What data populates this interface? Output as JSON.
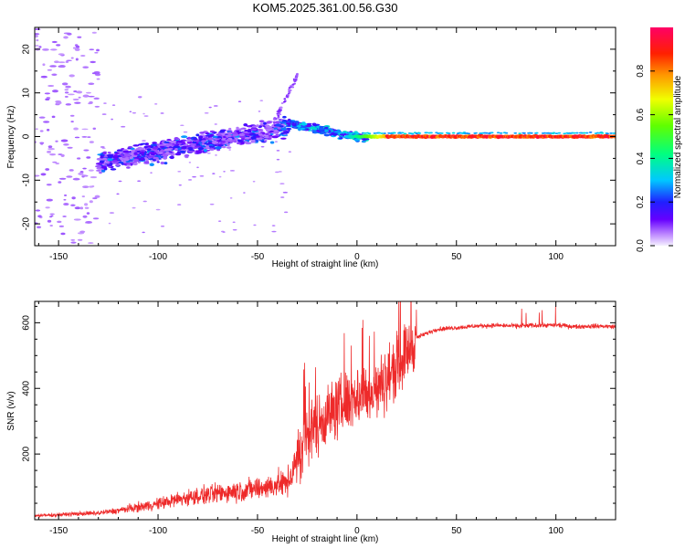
{
  "title": "KOM5.2025.361.00.56.G30",
  "chart_data": [
    {
      "type": "heatmap",
      "name": "spectrogram",
      "xlabel": "Height of straight line (km)",
      "ylabel": "Frequency (Hz)",
      "xlim": [
        -162,
        130
      ],
      "ylim": [
        -25,
        25
      ],
      "xticks": [
        -150,
        -100,
        -50,
        0,
        50,
        100
      ],
      "yticks": [
        -20,
        -10,
        0,
        10,
        20
      ],
      "colorbar": {
        "label": "Normalized spectral amplitude",
        "range": [
          0,
          1
        ],
        "ticks": [
          0.0,
          0.2,
          0.4,
          0.6,
          0.8
        ]
      },
      "features": [
        {
          "name": "noise region",
          "x": [
            -162,
            -130
          ],
          "freq": [
            -25,
            25
          ],
          "amplitude": 0.05
        },
        {
          "name": "scattered doppler cluster",
          "x": [
            -130,
            -35
          ],
          "freq": [
            -10,
            4
          ],
          "amplitude": 0.15
        },
        {
          "name": "upward streak",
          "x": [
            -42,
            -30
          ],
          "freq": [
            3,
            14
          ],
          "amplitude": 0.05
        },
        {
          "name": "stable carrier line",
          "x": [
            -20,
            130
          ],
          "freq": [
            -1,
            1
          ],
          "amplitude": 0.9
        }
      ]
    },
    {
      "type": "line",
      "name": "snr",
      "xlabel": "Height of straight line (km)",
      "ylabel": "SNR (v/v)",
      "xlim": [
        -162,
        130
      ],
      "ylim": [
        0,
        665
      ],
      "xticks": [
        -150,
        -100,
        -50,
        0,
        50,
        100
      ],
      "yticks": [
        200,
        400,
        600
      ],
      "color": "#ee2a2a",
      "series": [
        {
          "name": "SNR",
          "x": [
            -162,
            -150,
            -140,
            -130,
            -120,
            -110,
            -100,
            -90,
            -80,
            -70,
            -60,
            -50,
            -45,
            -40,
            -35,
            -30,
            -25,
            -20,
            -15,
            -10,
            -5,
            0,
            5,
            10,
            15,
            20,
            25,
            30,
            40,
            50,
            60,
            70,
            80,
            90,
            100,
            110,
            120,
            130
          ],
          "values": [
            12,
            15,
            18,
            20,
            28,
            38,
            48,
            62,
            72,
            80,
            88,
            95,
            100,
            108,
            110,
            180,
            260,
            290,
            320,
            340,
            360,
            380,
            380,
            390,
            430,
            470,
            510,
            555,
            580,
            585,
            590,
            592,
            590,
            592,
            593,
            588,
            590,
            588
          ]
        }
      ]
    }
  ]
}
